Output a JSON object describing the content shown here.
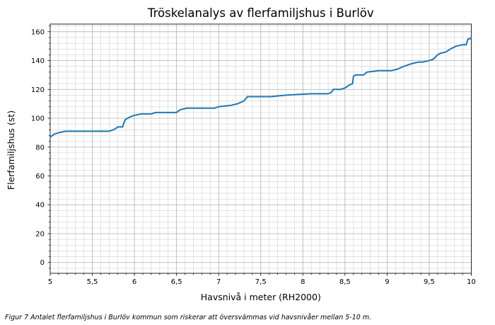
{
  "figure": {
    "caption": "Figur 7 Antalet flerfamiljshus i Burlöv kommun som riskerar att översvämmas vid havsnivåer mellan 5-10 m."
  },
  "chart_data": {
    "type": "line",
    "title": "Tröskelanalys av flerfamiljshus i Burlöv",
    "xlabel": "Havsnivå i meter (RH2000)",
    "ylabel": "Flerfamiljshus (st)",
    "xlim": [
      5,
      10
    ],
    "ylim": [
      -7.5,
      165.3
    ],
    "x_ticks": {
      "values": [
        5,
        5.5,
        6,
        6.5,
        7,
        7.5,
        8,
        8.5,
        9,
        9.5,
        10
      ],
      "labels": [
        "5",
        "5,5",
        "6",
        "6,5",
        "7",
        "7,5",
        "8",
        "8,5",
        "9",
        "9,5",
        "10"
      ]
    },
    "y_ticks": {
      "values": [
        0,
        20,
        40,
        60,
        80,
        100,
        120,
        140,
        160
      ],
      "labels": [
        "0",
        "20",
        "40",
        "60",
        "80",
        "100",
        "120",
        "140",
        "160"
      ]
    },
    "x_minor_step": 0.1,
    "y_minor_step": 4,
    "grid": "both",
    "legend": "none",
    "line_color": "#1f77b4",
    "grid_major_color": "#b0b0b0",
    "grid_minor_color": "#dcdcdc",
    "series": [
      {
        "name": "Flerfamiljshus",
        "points": [
          [
            5.0,
            87
          ],
          [
            5.05,
            89
          ],
          [
            5.1,
            90
          ],
          [
            5.18,
            91
          ],
          [
            5.7,
            91
          ],
          [
            5.75,
            92
          ],
          [
            5.78,
            93
          ],
          [
            5.8,
            94
          ],
          [
            5.86,
            94
          ],
          [
            5.87,
            96
          ],
          [
            5.89,
            99
          ],
          [
            5.95,
            101
          ],
          [
            6.0,
            102
          ],
          [
            6.08,
            103
          ],
          [
            6.2,
            103
          ],
          [
            6.25,
            104
          ],
          [
            6.5,
            104
          ],
          [
            6.52,
            105
          ],
          [
            6.55,
            106
          ],
          [
            6.62,
            107
          ],
          [
            6.95,
            107
          ],
          [
            7.0,
            108
          ],
          [
            7.15,
            109
          ],
          [
            7.22,
            110
          ],
          [
            7.3,
            112
          ],
          [
            7.33,
            114
          ],
          [
            7.34,
            115
          ],
          [
            7.62,
            115
          ],
          [
            7.8,
            116
          ],
          [
            8.1,
            117
          ],
          [
            8.3,
            117
          ],
          [
            8.34,
            118
          ],
          [
            8.36,
            120
          ],
          [
            8.45,
            120
          ],
          [
            8.5,
            121
          ],
          [
            8.55,
            123
          ],
          [
            8.59,
            124
          ],
          [
            8.6,
            129
          ],
          [
            8.62,
            130
          ],
          [
            8.72,
            130
          ],
          [
            8.76,
            132
          ],
          [
            8.9,
            133
          ],
          [
            9.05,
            133
          ],
          [
            9.12,
            134
          ],
          [
            9.2,
            136
          ],
          [
            9.3,
            138
          ],
          [
            9.38,
            139
          ],
          [
            9.43,
            139
          ],
          [
            9.5,
            140
          ],
          [
            9.55,
            141
          ],
          [
            9.6,
            144
          ],
          [
            9.63,
            145
          ],
          [
            9.7,
            146
          ],
          [
            9.75,
            148
          ],
          [
            9.82,
            150
          ],
          [
            9.9,
            151
          ],
          [
            9.94,
            151
          ],
          [
            9.96,
            155
          ],
          [
            9.98,
            155
          ],
          [
            10.0,
            156
          ]
        ]
      }
    ]
  }
}
